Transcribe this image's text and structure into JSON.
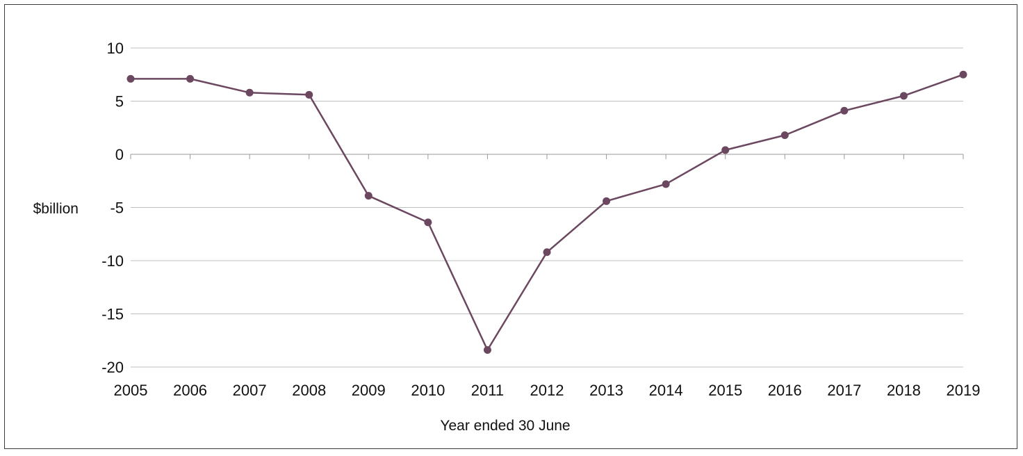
{
  "chart_data": {
    "type": "line",
    "xlabel": "Year ended 30 June",
    "ylabel": "$billion",
    "x": [
      "2005",
      "2006",
      "2007",
      "2008",
      "2009",
      "2010",
      "2011",
      "2012",
      "2013",
      "2014",
      "2015",
      "2016",
      "2017",
      "2018",
      "2019"
    ],
    "series": [
      {
        "values": [
          7.1,
          7.1,
          5.8,
          5.6,
          -3.9,
          -6.4,
          -18.4,
          -9.2,
          -4.4,
          -2.8,
          0.4,
          1.8,
          4.1,
          5.5,
          7.5
        ]
      }
    ],
    "yticks": [
      10,
      5,
      0,
      -5,
      -10,
      -15,
      -20
    ],
    "ylim": [
      -20,
      10
    ],
    "grid": true,
    "colors": {
      "line": "#6b4760",
      "grid": "#bfbfbf",
      "axis": "#9a9a9a"
    }
  }
}
